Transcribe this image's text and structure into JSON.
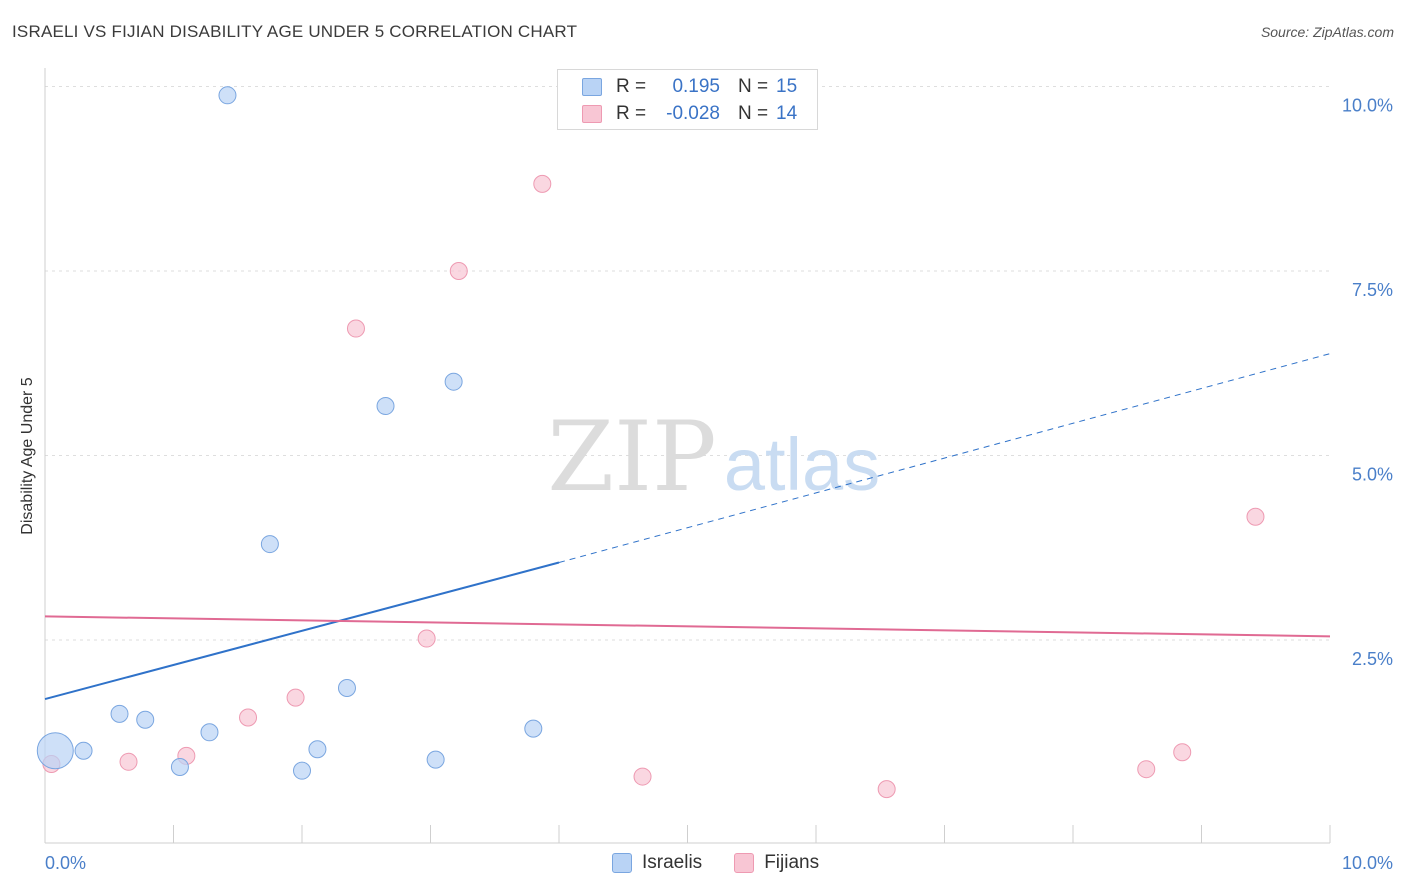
{
  "title": "ISRAELI VS FIJIAN DISABILITY AGE UNDER 5 CORRELATION CHART",
  "source": "Source: ZipAtlas.com",
  "watermark": {
    "zip": "ZIP",
    "atlas": "atlas"
  },
  "colors": {
    "israelis_fill": "#b9d3f5",
    "israelis_stroke": "#7aa6e0",
    "israelis_line": "#2f72c9",
    "fijians_fill": "#f8c6d4",
    "fijians_stroke": "#ee9ab2",
    "fijians_line": "#e06a93",
    "tick_label": "#4a7fc9"
  },
  "legend": {
    "rows": [
      {
        "r_label": "R =",
        "r_value": "0.195",
        "n_label": "N =",
        "n_value": "15"
      },
      {
        "r_label": "R =",
        "r_value": "-0.028",
        "n_label": "N =",
        "n_value": "14"
      }
    ],
    "series": [
      "Israelis",
      "Fijians"
    ]
  },
  "chart_data": {
    "type": "scatter",
    "title": "ISRAELI VS FIJIAN DISABILITY AGE UNDER 5 CORRELATION CHART",
    "xlabel": "",
    "ylabel": "Disability Age Under 5",
    "xlim": [
      0,
      10
    ],
    "ylim": [
      -0.25,
      10.25
    ],
    "x_tick_labels": [
      "0.0%",
      "10.0%"
    ],
    "y_ticks": [
      2.5,
      5.0,
      7.5,
      10.0
    ],
    "y_tick_labels": [
      "2.5%",
      "5.0%",
      "7.5%",
      "10.0%"
    ],
    "grid": true,
    "legend_position": "top-center",
    "series": [
      {
        "name": "Israelis",
        "points": [
          {
            "x": 0.08,
            "y": 1.0,
            "size": "large"
          },
          {
            "x": 0.3,
            "y": 1.0
          },
          {
            "x": 0.58,
            "y": 1.5
          },
          {
            "x": 0.78,
            "y": 1.42
          },
          {
            "x": 1.05,
            "y": 0.78
          },
          {
            "x": 1.28,
            "y": 1.25
          },
          {
            "x": 1.42,
            "y": 9.88
          },
          {
            "x": 1.75,
            "y": 3.8
          },
          {
            "x": 2.0,
            "y": 0.73
          },
          {
            "x": 2.12,
            "y": 1.02
          },
          {
            "x": 2.35,
            "y": 1.85
          },
          {
            "x": 2.65,
            "y": 5.67
          },
          {
            "x": 3.04,
            "y": 0.88
          },
          {
            "x": 3.18,
            "y": 6.0
          },
          {
            "x": 3.8,
            "y": 1.3
          }
        ],
        "trend": {
          "x1": 0.0,
          "y1": 1.7,
          "x2": 4.0,
          "y2": 3.55,
          "dashed_to": {
            "x": 10.0,
            "y": 6.38
          }
        }
      },
      {
        "name": "Fijians",
        "points": [
          {
            "x": 0.05,
            "y": 0.82
          },
          {
            "x": 0.65,
            "y": 0.85
          },
          {
            "x": 1.1,
            "y": 0.93
          },
          {
            "x": 1.58,
            "y": 1.45
          },
          {
            "x": 1.95,
            "y": 1.72
          },
          {
            "x": 2.42,
            "y": 6.72
          },
          {
            "x": 2.97,
            "y": 2.52
          },
          {
            "x": 3.22,
            "y": 7.5
          },
          {
            "x": 3.87,
            "y": 8.68
          },
          {
            "x": 4.65,
            "y": 0.65
          },
          {
            "x": 6.55,
            "y": 0.48
          },
          {
            "x": 8.57,
            "y": 0.75
          },
          {
            "x": 8.85,
            "y": 0.98
          },
          {
            "x": 9.42,
            "y": 4.17
          }
        ],
        "trend": {
          "x1": 0.0,
          "y1": 2.82,
          "x2": 10.0,
          "y2": 2.55
        }
      }
    ]
  }
}
